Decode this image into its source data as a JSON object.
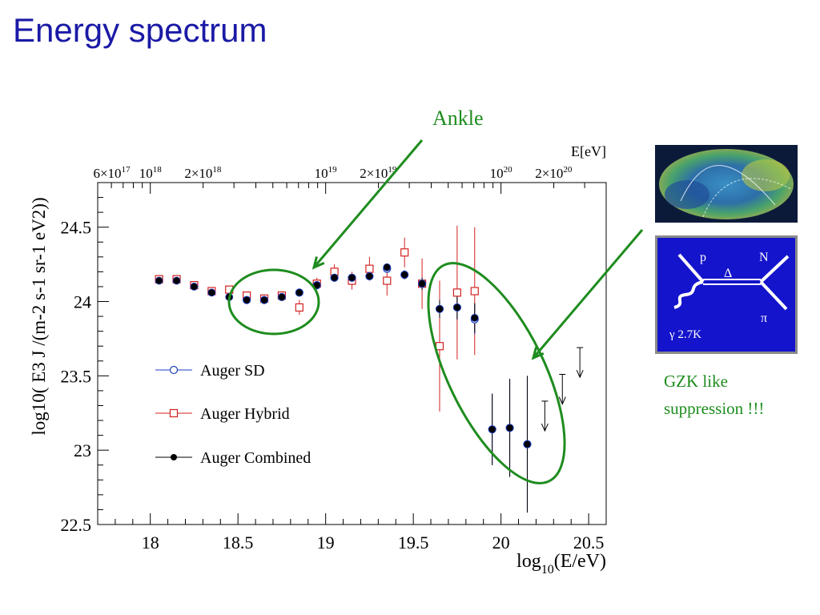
{
  "slide": {
    "title": "Energy spectrum",
    "ankle_label": "Ankle",
    "gzk_line1": "GZK like",
    "gzk_line2": "suppression !!!"
  },
  "colors": {
    "title": "#1a1aa6",
    "annotation": "#1e8c1e",
    "sd": "#1f3fbf",
    "hybrid": "#d42020",
    "combined": "#000000",
    "feynman_bg": "#1414cc"
  },
  "inset": {
    "feynman": {
      "p": "p",
      "N": "N",
      "delta": "Δ",
      "pi": "π",
      "gamma": "γ 2.7K"
    }
  },
  "chart_data": {
    "type": "scatter",
    "xlabel_main": "log",
    "xlabel_sub": "10",
    "xlabel_rest": "(E/eV)",
    "ylabel": "log10( E3 J /(m-2 s-1 sr-1 eV2))",
    "top_axis_title": "E[eV]",
    "xlim": [
      17.7,
      20.6
    ],
    "ylim": [
      22.5,
      24.8
    ],
    "x_ticks": [
      18,
      18.5,
      19,
      19.5,
      20,
      20.5
    ],
    "x_tick_labels": [
      "18",
      "18.5",
      "19",
      "19.5",
      "20",
      "20.5"
    ],
    "y_ticks": [
      22.5,
      23,
      23.5,
      24,
      24.5
    ],
    "y_tick_labels": [
      "22.5",
      "23",
      "23.5",
      "24",
      "24.5"
    ],
    "top_ticks": [
      {
        "base": "6×10",
        "exp": "17",
        "value": 17.78
      },
      {
        "base": "10",
        "exp": "18",
        "value": 18
      },
      {
        "base": "2×10",
        "exp": "18",
        "value": 18.3
      },
      {
        "base": "10",
        "exp": "19",
        "value": 19
      },
      {
        "base": "2×10",
        "exp": "19",
        "value": 19.3
      },
      {
        "base": "10",
        "exp": "20",
        "value": 20
      },
      {
        "base": "2×10",
        "exp": "20",
        "value": 20.3
      }
    ],
    "legend_position": "middle-left",
    "series": [
      {
        "name": "Auger SD",
        "marker": "open-circle",
        "x": [
          18.55,
          18.65,
          18.75,
          18.85,
          18.95,
          19.05,
          19.15,
          19.25,
          19.35,
          19.45,
          19.55,
          19.65,
          19.75,
          19.85,
          19.95,
          20.05,
          20.15
        ],
        "y": [
          24.01,
          24.01,
          24.03,
          24.06,
          24.11,
          24.16,
          24.16,
          24.17,
          24.22,
          24.18,
          24.12,
          23.95,
          23.96,
          23.88,
          23.14,
          23.15,
          23.04
        ],
        "err": [
          0.01,
          0.01,
          0.01,
          0.01,
          0.01,
          0.02,
          0.02,
          0.02,
          0.02,
          0.03,
          0.04,
          0.06,
          0.08,
          0.1,
          0.24,
          0.33,
          0.46
        ]
      },
      {
        "name": "Auger Hybrid",
        "marker": "open-square",
        "x": [
          18.05,
          18.15,
          18.25,
          18.35,
          18.45,
          18.55,
          18.65,
          18.75,
          18.85,
          18.95,
          19.05,
          19.15,
          19.25,
          19.35,
          19.45,
          19.55,
          19.65,
          19.75,
          19.85
        ],
        "y": [
          24.15,
          24.15,
          24.11,
          24.07,
          24.08,
          24.04,
          24.02,
          24.04,
          23.96,
          24.12,
          24.2,
          24.14,
          24.22,
          24.14,
          24.33,
          24.12,
          23.7,
          24.06,
          24.07
        ],
        "err": [
          0.01,
          0.01,
          0.01,
          0.02,
          0.02,
          0.02,
          0.02,
          0.03,
          0.05,
          0.04,
          0.05,
          0.06,
          0.08,
          0.1,
          0.1,
          0.17,
          0.44,
          0.45,
          0.43
        ]
      },
      {
        "name": "Auger Combined",
        "marker": "filled-circle",
        "x": [
          18.05,
          18.15,
          18.25,
          18.35,
          18.45,
          18.55,
          18.65,
          18.75,
          18.85,
          18.95,
          19.05,
          19.15,
          19.25,
          19.35,
          19.45,
          19.55,
          19.65,
          19.75,
          19.85,
          19.95,
          20.05,
          20.15
        ],
        "y": [
          24.14,
          24.14,
          24.1,
          24.06,
          24.03,
          24.01,
          24.01,
          24.03,
          24.06,
          24.11,
          24.16,
          24.16,
          24.17,
          24.23,
          24.18,
          24.12,
          23.95,
          23.96,
          23.89,
          23.14,
          23.15,
          23.04
        ],
        "err": [
          0.01,
          0.01,
          0.01,
          0.01,
          0.01,
          0.01,
          0.01,
          0.01,
          0.01,
          0.01,
          0.02,
          0.02,
          0.02,
          0.02,
          0.03,
          0.04,
          0.06,
          0.08,
          0.1,
          0.24,
          0.33,
          0.46
        ]
      }
    ],
    "upper_limits": {
      "x": [
        20.25,
        20.35,
        20.45
      ],
      "y_top": [
        23.33,
        23.51,
        23.69
      ],
      "y_bottom": [
        23.13,
        23.31,
        23.49
      ]
    },
    "highlights": [
      "Ankle",
      "GZK like suppression !!!"
    ]
  }
}
